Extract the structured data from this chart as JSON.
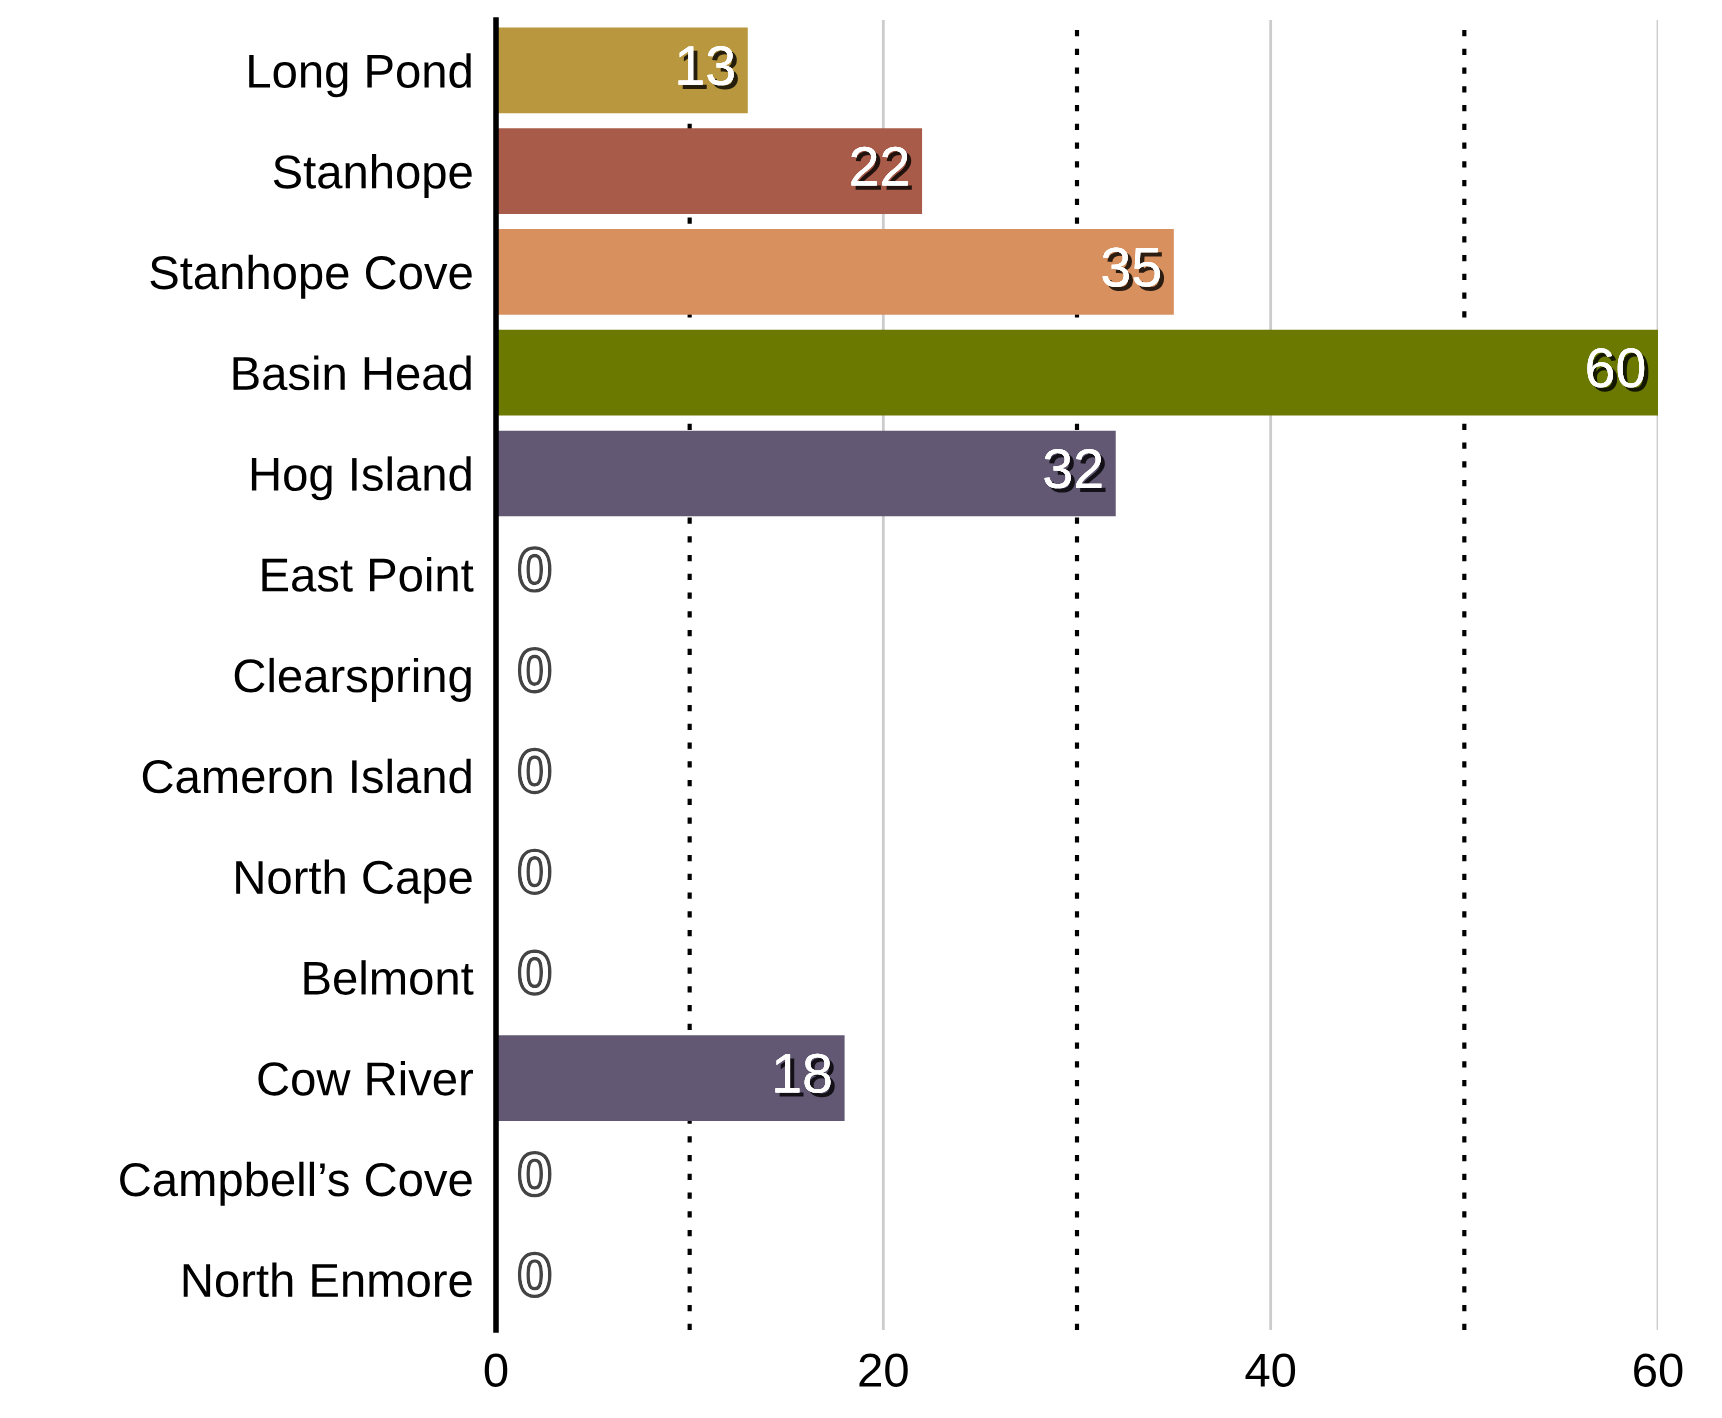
{
  "chart_data": {
    "type": "bar",
    "orientation": "horizontal",
    "categories": [
      "Long Pond",
      "Stanhope",
      "Stanhope Cove",
      "Basin Head",
      "Hog Island",
      "East Point",
      "Clearspring",
      "Cameron Island",
      "North Cape",
      "Belmont",
      "Cow River",
      "Campbell’s Cove",
      "North Enmore"
    ],
    "values": [
      13,
      22,
      35,
      60,
      32,
      0,
      0,
      0,
      0,
      0,
      18,
      0,
      0
    ],
    "colors": [
      "#b9973f",
      "#a95b49",
      "#d9905f",
      "#6b7900",
      "#625874",
      "#625874",
      "#625874",
      "#625874",
      "#625874",
      "#625874",
      "#625874",
      "#625874",
      "#625874"
    ],
    "xlim": [
      0,
      60
    ],
    "xticks": [
      0,
      20,
      40,
      60
    ],
    "grid": "x",
    "ref_lines": [
      {
        "axis": "x",
        "value": 10,
        "color": "#000000",
        "line_style": "dotted"
      },
      {
        "axis": "x",
        "value": 30,
        "color": "#000000",
        "line_style": "dotted"
      },
      {
        "axis": "x",
        "value": 50,
        "color": "#000000",
        "line_style": "dotted"
      }
    ],
    "data_labels": true
  }
}
